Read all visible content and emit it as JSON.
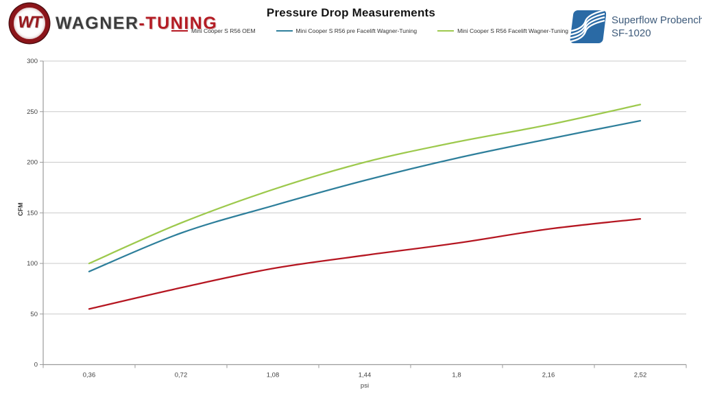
{
  "header": {
    "wagner_logo": {
      "monogram": "WT",
      "brand_dark": "WAGNER",
      "brand_red": "-TUNING"
    },
    "superflow_logo": {
      "line1": "Superflow Probench",
      "line2": "SF-1020"
    }
  },
  "chart_data": {
    "type": "line",
    "title": "Pressure Drop Measurements",
    "xlabel": "psi",
    "ylabel": "CFM",
    "x_categories": [
      "0,36",
      "0,72",
      "1,08",
      "1,44",
      "1,8",
      "2,16",
      "2,52"
    ],
    "x_values": [
      0.36,
      0.72,
      1.08,
      1.44,
      1.8,
      2.16,
      2.52
    ],
    "ylim": [
      0,
      300
    ],
    "y_ticks": [
      0,
      50,
      100,
      150,
      200,
      250,
      300
    ],
    "grid": true,
    "smoothed": true,
    "legend_position": "top",
    "series": [
      {
        "name": "Mini Cooper S R56 OEM",
        "color": "#b51621",
        "values": [
          55,
          76,
          95,
          108,
          120,
          134,
          144
        ]
      },
      {
        "name": "Mini Cooper S R56 pre Facelift Wagner-Tuning",
        "color": "#2e7f9b",
        "values": [
          92,
          130,
          157,
          182,
          204,
          223,
          241
        ]
      },
      {
        "name": "Mini Cooper S R56 Facelift Wagner-Tuning",
        "color": "#9dc94d",
        "values": [
          100,
          140,
          173,
          200,
          220,
          237,
          257
        ]
      }
    ],
    "colors": {
      "gridline": "#c9c9c9",
      "axis": "#9a9a9a",
      "tick_label": "#3f3f3f"
    }
  }
}
